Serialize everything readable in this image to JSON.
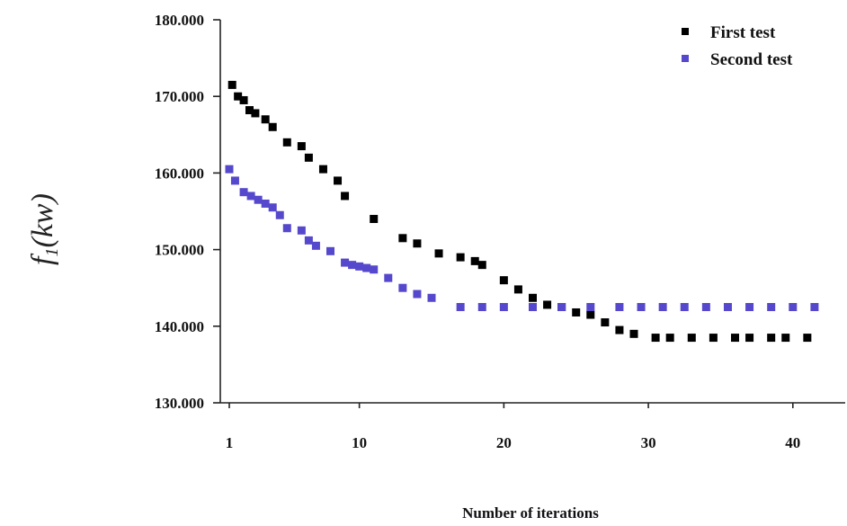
{
  "chart_data": {
    "type": "scatter",
    "title": "",
    "xlabel": "Number of iterations",
    "ylabel_main": "f",
    "ylabel_sub": "1",
    "ylabel_unit": "(kw)",
    "xlim": [
      1,
      43
    ],
    "ylim": [
      130000,
      180000
    ],
    "xticks": [
      1,
      10,
      20,
      30,
      40
    ],
    "xtick_labels": [
      "1",
      "10",
      "20",
      "30",
      "40"
    ],
    "yticks": [
      130000,
      140000,
      150000,
      160000,
      170000,
      180000
    ],
    "ytick_labels": [
      "130.000",
      "140.000",
      "150.000",
      "160.000",
      "170.000",
      "180.000"
    ],
    "grid": false,
    "legend_position": "top-right",
    "series": [
      {
        "name": "First test",
        "color": "#000000",
        "x": [
          1.2,
          1.6,
          2,
          2.4,
          2.8,
          3.5,
          4,
          5,
          6,
          6.5,
          7.5,
          8.5,
          9,
          11,
          13,
          14,
          15.5,
          17,
          18,
          18.5,
          20,
          21,
          22,
          23,
          24,
          25,
          26,
          27,
          28,
          29,
          30.5,
          31.5,
          33,
          34.5,
          36,
          37,
          38.5,
          39.5,
          41
        ],
        "y": [
          171500,
          170000,
          169500,
          168200,
          167800,
          167000,
          166000,
          164000,
          163500,
          162000,
          160500,
          159000,
          157000,
          154000,
          151500,
          150800,
          149500,
          149000,
          148500,
          148000,
          146000,
          144800,
          143700,
          142800,
          142500,
          141800,
          141500,
          140500,
          139500,
          139000,
          138500,
          138500,
          138500,
          138500,
          138500,
          138500,
          138500,
          138500,
          138500
        ]
      },
      {
        "name": "Second test",
        "color": "#5548cc",
        "x": [
          1,
          1.4,
          2,
          2.5,
          3,
          3.5,
          4,
          4.5,
          5,
          6,
          6.5,
          7,
          8,
          9,
          9.5,
          10,
          10.5,
          11,
          12,
          13,
          14,
          15,
          17,
          18.5,
          20,
          22,
          24,
          26,
          28,
          29.5,
          31,
          32.5,
          34,
          35.5,
          37,
          38.5,
          40,
          41.5
        ],
        "y": [
          160500,
          159000,
          157500,
          157000,
          156500,
          156000,
          155500,
          154500,
          152800,
          152500,
          151200,
          150500,
          149800,
          148300,
          148000,
          147800,
          147600,
          147400,
          146300,
          145000,
          144200,
          143700,
          142500,
          142500,
          142500,
          142500,
          142500,
          142500,
          142500,
          142500,
          142500,
          142500,
          142500,
          142500,
          142500,
          142500,
          142500,
          142500
        ]
      }
    ]
  }
}
